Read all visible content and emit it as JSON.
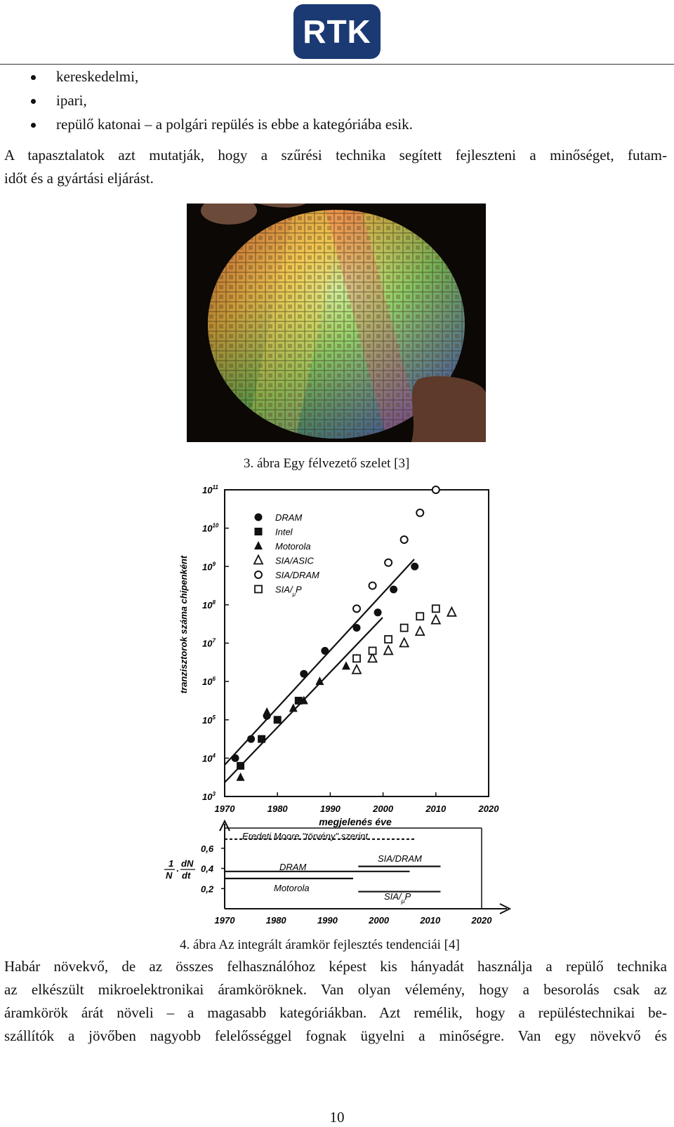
{
  "header": {
    "logo_text": "RTK"
  },
  "bullets": [
    "kereskedelmi,",
    "ipari,",
    "repülő katonai – a polgári repülés is ebbe a kategóriába esik."
  ],
  "paragraph1": {
    "line1": "A tapasztalatok azt mutatják, hogy a szűrési technika segített fejleszteni a minőséget, futam-",
    "line2": "időt és a gyártási eljárást."
  },
  "figure3": {
    "caption": "3. ábra Egy félvezető szelet [3]"
  },
  "figure4": {
    "caption": "4. ábra Az integrált áramkör fejlesztés tendenciái [4]",
    "top_chart": {
      "ylabel": "tranzisztorok száma chipenként",
      "xlabel": "megjelenés éve",
      "x_ticks": [
        "1970",
        "1980",
        "1990",
        "2000",
        "2010",
        "2020"
      ],
      "legend": [
        "DRAM",
        "Intel",
        "Motorola",
        "SIA/ASIC",
        "SIA/DRAM",
        "SIA/"
      ]
    },
    "bottom_chart": {
      "y_label_1": "1",
      "y_label_2": "N",
      "y_label_3": "dN",
      "y_label_4": "dt",
      "y_ticks": [
        "0,6",
        "0,4",
        "0,2"
      ],
      "x_ticks": [
        "1970",
        "1980",
        "1990",
        "2000",
        "2010",
        "2020"
      ],
      "moore_label": "Eredeti Moore \"törvény\" szerint",
      "label_sia_dram": "SIA/DRAM",
      "label_dram": "DRAM",
      "label_motorola": "Motorola",
      "label_sia_up": "SIA/"
    }
  },
  "chart_data": [
    {
      "type": "scatter",
      "log_y": true,
      "xlabel": "megjelenés éve",
      "ylabel": "tranzisztorok száma chipenként",
      "xlim": [
        1970,
        2020
      ],
      "ylim_exponent": [
        3,
        11
      ],
      "series": [
        {
          "name": "DRAM",
          "x": [
            1972,
            1975,
            1978,
            1985,
            1989,
            1995,
            1999,
            2002,
            2006
          ],
          "log10_y": [
            4.0,
            4.5,
            5.1,
            6.2,
            6.8,
            7.4,
            7.8,
            8.4,
            9.0
          ]
        },
        {
          "name": "Intel",
          "x": [
            1973,
            1977,
            1980,
            1984
          ],
          "log10_y": [
            3.8,
            4.5,
            5.0,
            5.5
          ]
        },
        {
          "name": "Motorola",
          "x": [
            1973,
            1978,
            1983,
            1985,
            1988,
            1993,
            1995
          ],
          "log10_y": [
            3.5,
            5.2,
            5.3,
            5.5,
            6.0,
            6.4,
            6.6
          ]
        },
        {
          "name": "SIA/ASIC",
          "x": [
            1995,
            1998,
            2001,
            2004,
            2007,
            2010,
            2013
          ],
          "log10_y": [
            6.3,
            6.6,
            6.8,
            7.0,
            7.3,
            7.6,
            7.8
          ]
        },
        {
          "name": "SIA/DRAM",
          "x": [
            1995,
            1998,
            2001,
            2004,
            2007,
            2010
          ],
          "log10_y": [
            7.9,
            8.5,
            9.1,
            9.7,
            10.4,
            11.0
          ]
        },
        {
          "name": "SIA/",
          "x": [
            1995,
            1998,
            2001,
            2004,
            2007,
            2010
          ],
          "log10_y": [
            6.6,
            6.8,
            7.1,
            7.4,
            7.7,
            7.9
          ]
        }
      ]
    },
    {
      "type": "line",
      "xlim": [
        1970,
        2020
      ],
      "y_ticks": [
        0.6,
        0.4,
        0.2
      ],
      "series": [
        {
          "name": "Eredeti Moore \"törvény\" szerint",
          "x": [
            1970,
            2007
          ],
          "y": [
            0.69,
            0.69
          ],
          "style": "dashed"
        },
        {
          "name": "SIA/DRAM",
          "x": [
            1996,
            2012
          ],
          "y": [
            0.42,
            0.42
          ]
        },
        {
          "name": "DRAM",
          "x": [
            1970,
            2006
          ],
          "y": [
            0.37,
            0.37
          ]
        },
        {
          "name": "Motorola",
          "x": [
            1970,
            1995
          ],
          "y": [
            0.3,
            0.3
          ]
        },
        {
          "name": "SIA/",
          "x": [
            1996,
            2012
          ],
          "y": [
            0.17,
            0.17
          ]
        }
      ]
    }
  ],
  "paragraph2": {
    "line1": "Habár növekvő, de az összes felhasználóhoz képest kis hányadát használja a repülő technika",
    "line2": "az elkészült mikroelektronikai áramköröknek. Van olyan vélemény, hogy a besorolás csak az",
    "line3": "áramkörök árát növeli – a magasabb kategóriákban. Azt remélik, hogy a repüléstechnikai be-",
    "line4": "szállítók a jövőben nagyobb felelősséggel fognak ügyelni a minőségre. Van egy növekvő és"
  },
  "page_number": "10"
}
